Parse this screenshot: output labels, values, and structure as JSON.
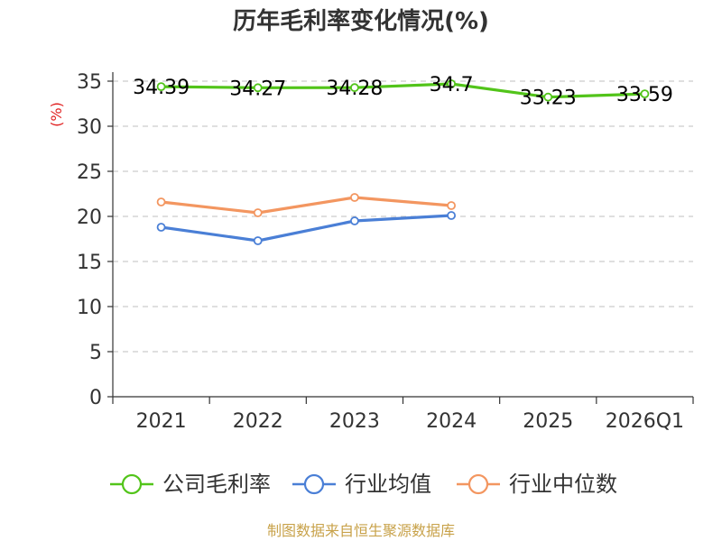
{
  "chart_data": {
    "type": "line",
    "title": "历年毛利率变化情况(%)",
    "ylabel": "(%)",
    "xlabel": "",
    "categories": [
      "2021",
      "2022",
      "2023",
      "2024",
      "2025",
      "2026Q1"
    ],
    "ylim": [
      0,
      35
    ],
    "yticks": [
      0,
      5,
      10,
      15,
      20,
      25,
      30,
      35
    ],
    "grid": true,
    "legend_position": "bottom",
    "series": [
      {
        "name": "公司毛利率",
        "color": "#52c41a",
        "values": [
          34.39,
          34.27,
          34.28,
          34.7,
          33.23,
          33.59
        ],
        "labels": [
          "34.39",
          "34.27",
          "34.28",
          "34.7",
          "33.23",
          "33.59"
        ]
      },
      {
        "name": "行业均值",
        "color": "#4a7fd6",
        "values": [
          18.8,
          17.3,
          19.5,
          20.1,
          null,
          null
        ]
      },
      {
        "name": "行业中位数",
        "color": "#f39660",
        "values": [
          21.6,
          20.4,
          22.1,
          21.2,
          null,
          null
        ]
      }
    ]
  },
  "footer": "制图数据来自恒生聚源数据库"
}
